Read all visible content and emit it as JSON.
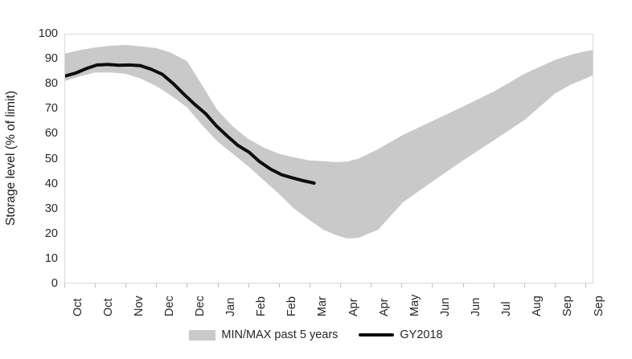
{
  "chart_data": {
    "type": "area",
    "title": "",
    "ylabel": "Storage level (% of limit)",
    "xlabel": "",
    "ylim": [
      0,
      100
    ],
    "yticks": [
      0,
      10,
      20,
      30,
      40,
      50,
      60,
      70,
      80,
      90,
      100
    ],
    "xticklabels": [
      "Oct",
      "Oct",
      "Nov",
      "Dec",
      "Dec",
      "Jan",
      "Feb",
      "Feb",
      "Mar",
      "Apr",
      "Apr",
      "May",
      "Jun",
      "Jun",
      "Jul",
      "Aug",
      "Sep",
      "Sep"
    ],
    "grid": false,
    "legend_position": "bottom-center",
    "series": [
      {
        "name": "MIN/MAX past 5 years",
        "kind": "band",
        "color": "#c9c9c9",
        "points_x_min_max": [
          [
            0.0,
            81,
            92
          ],
          [
            0.03,
            83,
            93.5
          ],
          [
            0.058,
            84.5,
            94.5
          ],
          [
            0.088,
            84.5,
            95.2
          ],
          [
            0.116,
            84,
            95.5
          ],
          [
            0.145,
            82,
            95
          ],
          [
            0.174,
            79,
            94.2
          ],
          [
            0.2,
            75.5,
            92.5
          ],
          [
            0.232,
            70.5,
            89
          ],
          [
            0.26,
            63.5,
            79.5
          ],
          [
            0.289,
            57,
            69.5
          ],
          [
            0.318,
            52,
            63
          ],
          [
            0.347,
            47,
            58
          ],
          [
            0.376,
            41.5,
            54.5
          ],
          [
            0.405,
            36,
            52
          ],
          [
            0.434,
            30,
            50.5
          ],
          [
            0.463,
            25.5,
            49.3
          ],
          [
            0.49,
            21.5,
            49
          ],
          [
            0.512,
            19.5,
            48.6
          ],
          [
            0.535,
            18,
            48.8
          ],
          [
            0.556,
            18.3,
            50
          ],
          [
            0.576,
            20,
            52
          ],
          [
            0.593,
            21.5,
            53.8
          ],
          [
            0.64,
            32.5,
            59.5
          ],
          [
            0.697,
            41,
            65.2
          ],
          [
            0.755,
            49.5,
            71
          ],
          [
            0.813,
            57.5,
            77
          ],
          [
            0.87,
            65.5,
            84
          ],
          [
            0.927,
            76,
            89.5
          ],
          [
            0.956,
            79.5,
            91.5
          ],
          [
            0.985,
            82,
            93
          ],
          [
            1.0,
            83.5,
            93.5
          ]
        ]
      },
      {
        "name": "GY2018",
        "kind": "line",
        "color": "#0d0d0d",
        "points_x_value": [
          [
            0.0,
            83
          ],
          [
            0.021,
            84.2
          ],
          [
            0.041,
            86.0
          ],
          [
            0.062,
            87.5
          ],
          [
            0.082,
            87.7
          ],
          [
            0.103,
            87.4
          ],
          [
            0.123,
            87.5
          ],
          [
            0.144,
            87.2
          ],
          [
            0.164,
            85.8
          ],
          [
            0.185,
            83.8
          ],
          [
            0.205,
            80.2
          ],
          [
            0.226,
            75.8
          ],
          [
            0.246,
            71.8
          ],
          [
            0.267,
            68.0
          ],
          [
            0.287,
            63.2
          ],
          [
            0.308,
            59.0
          ],
          [
            0.328,
            55.3
          ],
          [
            0.349,
            52.6
          ],
          [
            0.369,
            48.8
          ],
          [
            0.39,
            45.8
          ],
          [
            0.41,
            43.6
          ],
          [
            0.431,
            42.3
          ],
          [
            0.451,
            41.2
          ],
          [
            0.472,
            40.2
          ]
        ]
      }
    ]
  },
  "axis": {
    "y_title": "Storage level (% of limit)",
    "border_color": "#d9d9d9",
    "tick_color": "#bfbfbf",
    "label_color": "#262626"
  },
  "legend": {
    "band_label": "MIN/MAX past 5 years",
    "line_label": "GY2018",
    "band_color": "#c9c9c9",
    "line_color": "#0d0d0d"
  }
}
